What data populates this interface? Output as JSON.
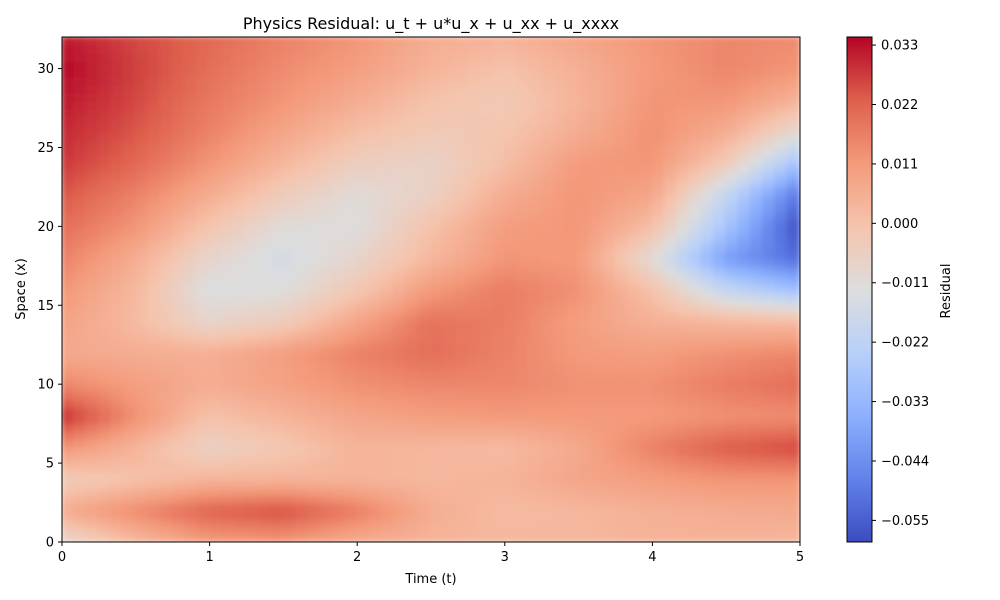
{
  "chart_data": {
    "type": "heatmap",
    "title": "Physics Residual: u_t + u*u_x + u_xx + u_xxxx",
    "xlabel": "Time (t)",
    "ylabel": "Space (x)",
    "colorbar_label": "Residual",
    "colormap": "coolwarm",
    "xlim": [
      0,
      5
    ],
    "ylim": [
      0,
      32
    ],
    "xticks": [
      "0",
      "1",
      "2",
      "3",
      "4",
      "5"
    ],
    "yticks": [
      "0",
      "5",
      "10",
      "15",
      "20",
      "25",
      "30"
    ],
    "color_range": [
      -0.059,
      0.0345
    ],
    "colorbar_ticks": [
      "0.033",
      "0.022",
      "0.011",
      "0.000",
      "−0.011",
      "−0.022",
      "−0.033",
      "−0.044",
      "−0.055"
    ],
    "colorbar_tick_values": [
      0.033,
      0.022,
      0.011,
      0.0,
      -0.011,
      -0.022,
      -0.033,
      -0.044,
      -0.055
    ],
    "grid": false,
    "field": {
      "t": [
        0,
        0.5,
        1,
        1.5,
        2,
        2.5,
        3,
        3.5,
        4,
        4.5,
        5
      ],
      "x": [
        0,
        2,
        4,
        6,
        8,
        10,
        12,
        14,
        16,
        18,
        20,
        22,
        24,
        26,
        28,
        30,
        32
      ],
      "residual": [
        [
          -0.01,
          0.002,
          0.01,
          0.011,
          0.006,
          0.004,
          0.003,
          0.003,
          0.004,
          0.004,
          0.003
        ],
        [
          0.006,
          0.014,
          0.022,
          0.025,
          0.017,
          0.006,
          0.002,
          0.003,
          0.005,
          0.006,
          0.007
        ],
        [
          -0.004,
          0.0,
          0.004,
          0.004,
          0.004,
          0.003,
          0.004,
          0.008,
          0.01,
          0.012,
          0.012
        ],
        [
          0.012,
          0.004,
          -0.006,
          -0.002,
          0.004,
          0.003,
          0.002,
          0.007,
          0.016,
          0.023,
          0.026
        ],
        [
          0.03,
          0.013,
          0.0,
          0.004,
          0.008,
          0.01,
          0.011,
          0.011,
          0.011,
          0.013,
          0.014
        ],
        [
          0.015,
          0.01,
          0.006,
          0.009,
          0.013,
          0.015,
          0.015,
          0.013,
          0.013,
          0.017,
          0.02
        ],
        [
          0.007,
          0.006,
          0.005,
          0.01,
          0.016,
          0.02,
          0.016,
          0.011,
          0.01,
          0.013,
          0.015
        ],
        [
          0.009,
          0.002,
          -0.008,
          -0.004,
          0.008,
          0.019,
          0.017,
          0.01,
          0.005,
          0.003,
          0.002
        ],
        [
          0.012,
          0.003,
          -0.013,
          -0.012,
          -0.002,
          0.011,
          0.017,
          0.013,
          0.0,
          -0.02,
          -0.03
        ],
        [
          0.016,
          0.006,
          -0.008,
          -0.015,
          -0.008,
          0.003,
          0.012,
          0.011,
          -0.01,
          -0.04,
          -0.052
        ],
        [
          0.02,
          0.012,
          -0.001,
          -0.011,
          -0.012,
          0.0,
          0.01,
          0.012,
          0.001,
          -0.028,
          -0.058
        ],
        [
          0.024,
          0.016,
          0.006,
          -0.004,
          -0.011,
          -0.006,
          0.006,
          0.012,
          0.008,
          -0.02,
          -0.05
        ],
        [
          0.028,
          0.021,
          0.012,
          0.003,
          -0.005,
          -0.007,
          0.001,
          0.011,
          0.012,
          -0.003,
          -0.03
        ],
        [
          0.03,
          0.024,
          0.016,
          0.008,
          0.001,
          -0.003,
          -0.001,
          0.006,
          0.013,
          0.006,
          -0.01
        ],
        [
          0.032,
          0.026,
          0.018,
          0.012,
          0.006,
          0.0,
          -0.003,
          0.004,
          0.012,
          0.012,
          0.004
        ],
        [
          0.034,
          0.027,
          0.02,
          0.014,
          0.01,
          0.004,
          0.0,
          0.005,
          0.011,
          0.015,
          0.012
        ],
        [
          0.032,
          0.026,
          0.021,
          0.016,
          0.012,
          0.006,
          0.004,
          0.008,
          0.012,
          0.015,
          0.014
        ]
      ]
    }
  }
}
